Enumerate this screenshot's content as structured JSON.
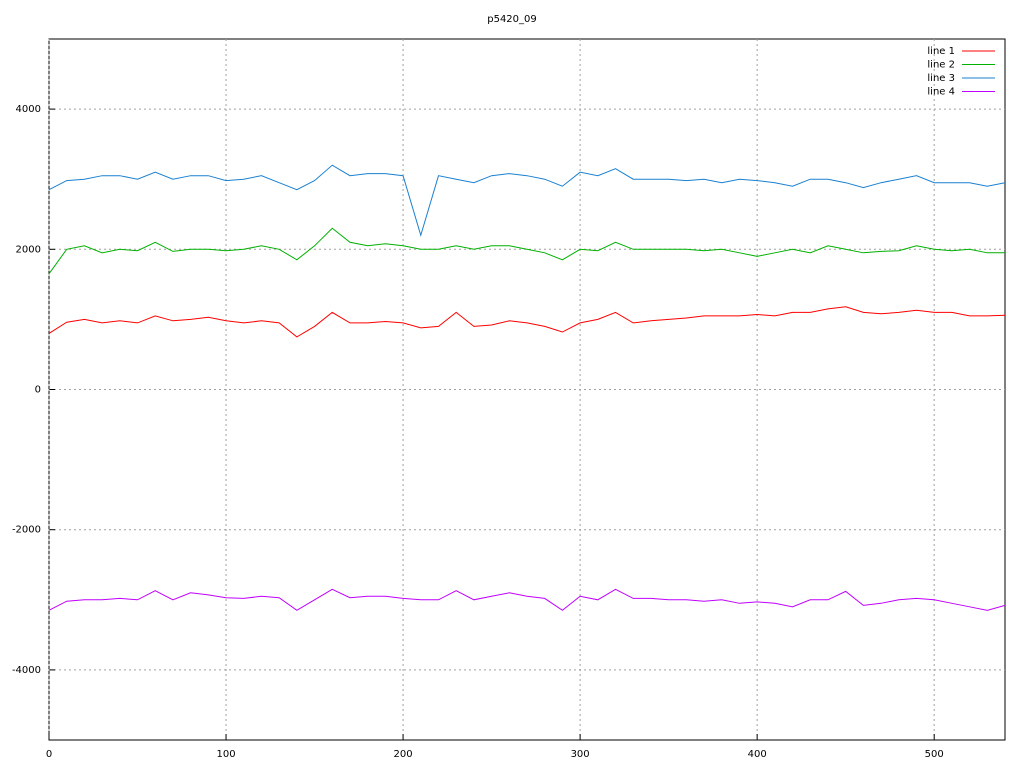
{
  "chart_data": {
    "type": "line",
    "title": "p5420_09",
    "x": [
      0,
      10,
      20,
      30,
      40,
      50,
      60,
      70,
      80,
      90,
      100,
      110,
      120,
      130,
      140,
      150,
      160,
      170,
      180,
      190,
      200,
      210,
      220,
      230,
      240,
      250,
      260,
      270,
      280,
      290,
      300,
      310,
      320,
      330,
      340,
      350,
      360,
      370,
      380,
      390,
      400,
      410,
      420,
      430,
      440,
      450,
      460,
      470,
      480,
      490,
      500,
      510,
      520,
      530,
      540
    ],
    "series": [
      {
        "name": "line 1",
        "color": "#ff0000",
        "values": [
          800,
          960,
          1000,
          950,
          980,
          950,
          1050,
          980,
          1000,
          1030,
          980,
          950,
          980,
          950,
          750,
          900,
          1100,
          950,
          950,
          970,
          950,
          880,
          900,
          1100,
          900,
          920,
          980,
          950,
          900,
          820,
          950,
          1000,
          1100,
          950,
          980,
          1000,
          1020,
          1050,
          1050,
          1050,
          1070,
          1050,
          1100,
          1100,
          1150,
          1180,
          1100,
          1080,
          1100,
          1130,
          1100,
          1100,
          1050,
          1050,
          1060
        ]
      },
      {
        "name": "line 2",
        "color": "#00b000",
        "values": [
          1650,
          2000,
          2050,
          1950,
          2000,
          1980,
          2100,
          1970,
          2000,
          2000,
          1980,
          2000,
          2050,
          2000,
          1850,
          2050,
          2300,
          2100,
          2050,
          2080,
          2050,
          2000,
          2000,
          2050,
          2000,
          2050,
          2050,
          2000,
          1950,
          1850,
          2000,
          1980,
          2100,
          2000,
          2000,
          2000,
          2000,
          1980,
          2000,
          1950,
          1900,
          1950,
          2000,
          1950,
          2050,
          2000,
          1950,
          1970,
          1980,
          2050,
          2000,
          1980,
          2000,
          1950,
          1950
        ]
      },
      {
        "name": "line 3",
        "color": "#1a80d0",
        "values": [
          2850,
          2980,
          3000,
          3050,
          3050,
          3000,
          3100,
          3000,
          3050,
          3050,
          2980,
          3000,
          3050,
          2950,
          2850,
          2980,
          3200,
          3050,
          3080,
          3080,
          3050,
          2200,
          3050,
          3000,
          2950,
          3050,
          3080,
          3050,
          3000,
          2900,
          3100,
          3050,
          3150,
          3000,
          3000,
          3000,
          2980,
          3000,
          2950,
          3000,
          2980,
          2950,
          2900,
          3000,
          3000,
          2950,
          2880,
          2950,
          3000,
          3050,
          2950,
          2950,
          2950,
          2900,
          2950
        ]
      },
      {
        "name": "line 4",
        "color": "#c000ff",
        "values": [
          -3150,
          -3020,
          -3000,
          -3000,
          -2980,
          -3000,
          -2870,
          -3000,
          -2900,
          -2930,
          -2970,
          -2980,
          -2950,
          -2970,
          -3150,
          -3000,
          -2850,
          -2970,
          -2950,
          -2950,
          -2980,
          -3000,
          -3000,
          -2870,
          -3000,
          -2950,
          -2900,
          -2950,
          -2980,
          -3150,
          -2950,
          -3000,
          -2850,
          -2980,
          -2980,
          -3000,
          -3000,
          -3020,
          -3000,
          -3050,
          -3030,
          -3050,
          -3100,
          -3000,
          -3000,
          -2880,
          -3080,
          -3050,
          -3000,
          -2980,
          -3000,
          -3050,
          -3100,
          -3150,
          -3080
        ]
      }
    ],
    "xlim": [
      0,
      540
    ],
    "ylim": [
      -5000,
      5000
    ],
    "xticks": [
      0,
      100,
      200,
      300,
      400,
      500
    ],
    "yticks": [
      -4000,
      -2000,
      0,
      2000,
      4000
    ],
    "grid": true,
    "legend": "top-right"
  }
}
